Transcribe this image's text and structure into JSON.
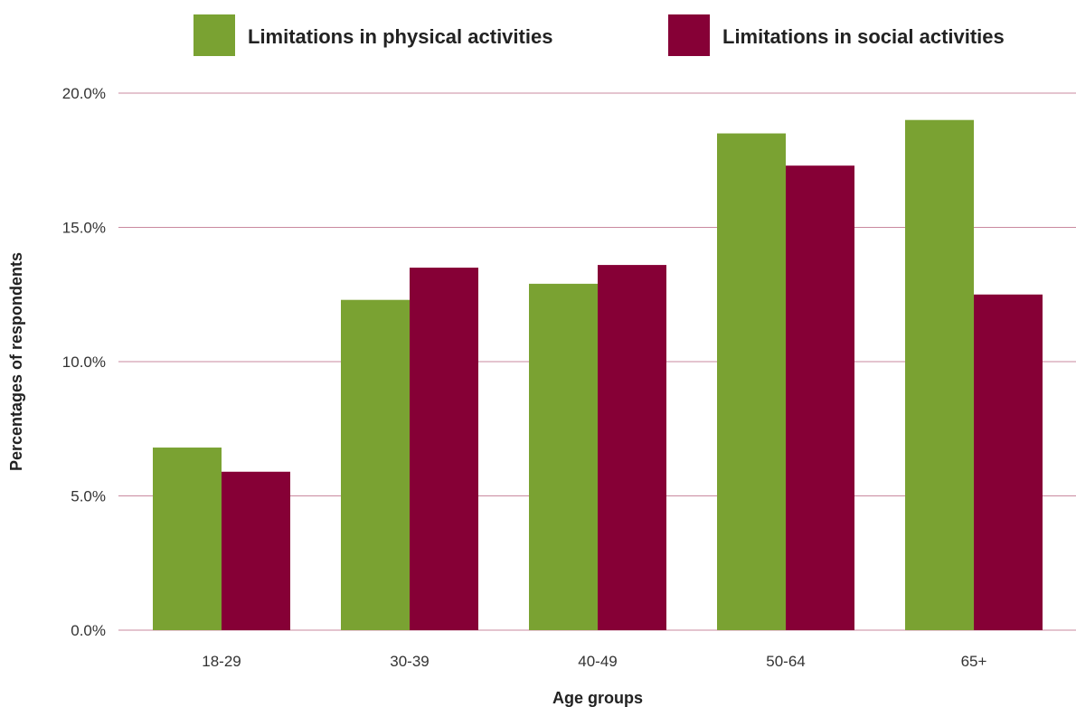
{
  "chart_data": {
    "type": "bar",
    "categories": [
      "18-29",
      "30-39",
      "40-49",
      "50-64",
      "65+"
    ],
    "series": [
      {
        "name": "Limitations in physical activities",
        "color": "#7aa232",
        "values": [
          6.8,
          12.3,
          12.9,
          18.5,
          19.0
        ]
      },
      {
        "name": "Limitations in social activities",
        "color": "#860036",
        "values": [
          5.9,
          13.5,
          13.6,
          17.3,
          12.5
        ]
      }
    ],
    "xlabel": "Age groups",
    "ylabel": "Percentages of respondents",
    "ylim": [
      0,
      20
    ],
    "yticks": [
      0,
      5,
      10,
      15,
      20
    ],
    "ytick_labels": [
      "0.0%",
      "5.0%",
      "10.0%",
      "15.0%",
      "20.0%"
    ],
    "grid": true,
    "grid_color": "#c9899f",
    "legend_position": "top-right"
  }
}
